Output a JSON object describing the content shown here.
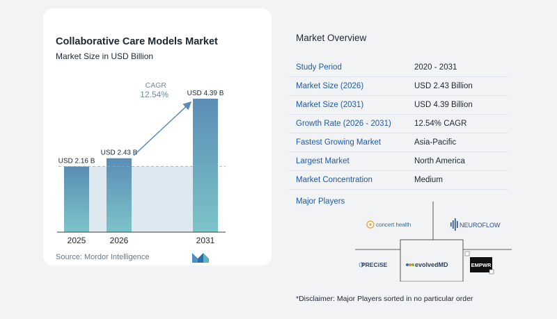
{
  "chart": {
    "title": "Collaborative Care Models Market",
    "subtitle": "Market Size in USD Billion",
    "source": "Source:  Mordor Intelligence",
    "cagr_label": "CAGR",
    "cagr_value": "12.54%"
  },
  "chart_data": {
    "type": "bar",
    "categories": [
      "2025",
      "2026",
      "2031"
    ],
    "values": [
      2.16,
      2.43,
      4.39
    ],
    "data_labels": [
      "USD 2.16 B",
      "USD 2.43 B",
      "USD 4.39 B"
    ],
    "title": "Collaborative Care Models Market",
    "subtitle": "Market Size in USD Billion",
    "ylim": [
      0,
      4.5
    ],
    "annotation": "CAGR 12.54%",
    "grid": false,
    "colors": {
      "bar_top": "#5b8db5",
      "bar_bottom": "#7cc4c9",
      "band": "#dde8f1",
      "arrow": "#5b8db5"
    }
  },
  "overview": {
    "title": "Market Overview",
    "rows": [
      {
        "key": "Study Period",
        "value": "2020 - 2031"
      },
      {
        "key": "Market Size (2026)",
        "value": "USD 2.43 Billion"
      },
      {
        "key": "Market Size (2031)",
        "value": "USD 4.39 Billion"
      },
      {
        "key": "Growth Rate (2026 - 2031)",
        "value": "12.54% CAGR"
      },
      {
        "key": "Fastest Growing Market",
        "value": "Asia-Pacific"
      },
      {
        "key": "Largest Market",
        "value": "North America"
      },
      {
        "key": "Market Concentration",
        "value": "Medium"
      }
    ]
  },
  "players": {
    "title": "Major Players",
    "logos": [
      "concert health",
      "NEUROFLOW",
      "PRECiSE",
      "evolvedMD",
      "EMPWR"
    ]
  },
  "disclaimer": "*Disclaimer: Major Players sorted in no particular order"
}
